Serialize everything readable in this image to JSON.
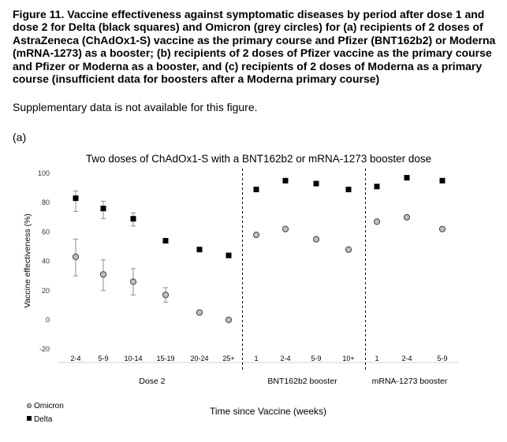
{
  "caption": {
    "bold_text": "Figure 11. Vaccine effectiveness against symptomatic diseases by period after dose 1 and dose 2 for Delta (black squares) and Omicron (grey circles) for (a) recipients of 2 doses of AstraZeneca (ChAdOx1-S) vaccine as the primary course and Pfizer (BNT162b2) or Moderna (mRNA-1273) as a booster; (b) recipients of 2 doses of Pfizer vaccine as the primary course and Pfizer or Moderna as a booster, and (c) recipients of 2 doses of Moderna as a primary course (insufficient data for boosters after a Moderna primary course)",
    "subtitle": "Supplementary data is not available for this figure.",
    "panel_label": "(a)"
  },
  "colors": {
    "delta": "#000000",
    "omicron_fill": "#bfbfbf",
    "omicron_stroke": "#404040",
    "errorbar": "#8c8c8c",
    "divider": "#000000"
  },
  "chart_data": {
    "type": "scatter",
    "title": "Two doses of ChAdOx1-S with a BNT162b2 or mRNA-1273 booster dose",
    "xlabel": "Time since Vaccine (weeks)",
    "ylabel": "Vaccine effectiveness (%)",
    "ylim": [
      -20,
      100
    ],
    "yticks": [
      "100",
      "80",
      "60",
      "40",
      "20",
      "0",
      "-20"
    ],
    "ytick_values": [
      100,
      80,
      60,
      40,
      20,
      0,
      -20
    ],
    "grid": false,
    "legend_position": "bottom-left",
    "categories": [
      "2-4",
      "5-9",
      "10-14",
      "15-19",
      "20-24",
      "25+",
      "1",
      "2-4",
      "5-9",
      "10+",
      "1",
      "2-4",
      "5-9"
    ],
    "groups": [
      {
        "label": "Dose 2",
        "start": 0,
        "end": 5
      },
      {
        "label": "BNT162b2 booster",
        "start": 6,
        "end": 9
      },
      {
        "label": "mRNA-1273 booster",
        "start": 10,
        "end": 12
      }
    ],
    "series": [
      {
        "name": "Omicron",
        "marker": "circle",
        "values": [
          43,
          31,
          26,
          17,
          5,
          0,
          58,
          62,
          55,
          48,
          67,
          70,
          62
        ],
        "lower": [
          30,
          20,
          17,
          12,
          null,
          null,
          null,
          null,
          null,
          null,
          null,
          null,
          null
        ],
        "upper": [
          55,
          41,
          35,
          22,
          null,
          null,
          null,
          null,
          null,
          null,
          null,
          null,
          null
        ]
      },
      {
        "name": "Delta",
        "marker": "square",
        "values": [
          83,
          76,
          69,
          54,
          48,
          44,
          89,
          95,
          93,
          89,
          91,
          97,
          95
        ],
        "lower": [
          74,
          69,
          64,
          null,
          null,
          null,
          null,
          null,
          null,
          null,
          null,
          null,
          null
        ],
        "upper": [
          88,
          81,
          73,
          null,
          null,
          null,
          null,
          null,
          null,
          null,
          null,
          null,
          null
        ]
      }
    ]
  }
}
